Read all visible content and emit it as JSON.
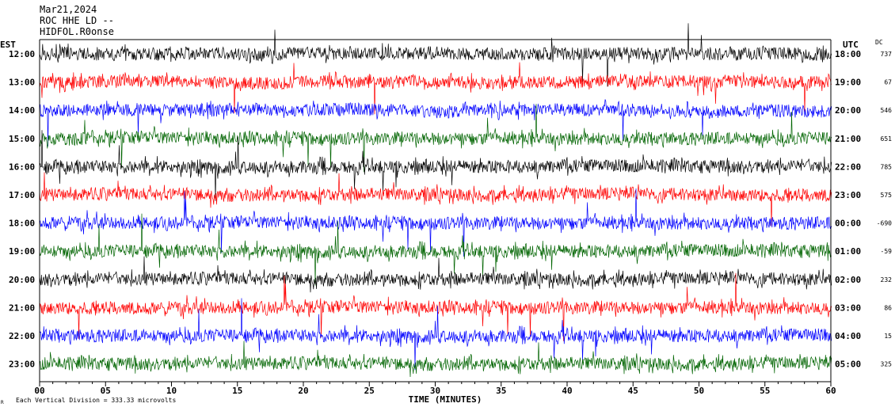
{
  "header": {
    "date": "Mar21,2024",
    "station": "ROC HHE LD --",
    "filter": "HIDFOL.R0onse"
  },
  "chart_data": {
    "type": "line",
    "title": "Mar21,2024",
    "left_axis_label": "EST",
    "right_axis_label": "UTC",
    "dc_label": "DC",
    "xlabel": "TIME (MINUTES)",
    "xlim": [
      0,
      60
    ],
    "x_ticks": [
      "00",
      "05",
      "10",
      "15",
      "20",
      "25",
      "30",
      "35",
      "40",
      "45",
      "50",
      "55",
      "60"
    ],
    "footer": "Each Vertical Division =  333.33 microvolts",
    "corner_mark": "R",
    "trace_colors": [
      "#000000",
      "#ff0000",
      "#0000ff",
      "#006400"
    ],
    "rows": [
      {
        "est": "12:00",
        "utc": "18:00",
        "dc": "737",
        "color": "#000000"
      },
      {
        "est": "13:00",
        "utc": "19:00",
        "dc": "67",
        "color": "#ff0000"
      },
      {
        "est": "14:00",
        "utc": "20:00",
        "dc": "546",
        "color": "#0000ff"
      },
      {
        "est": "15:00",
        "utc": "21:00",
        "dc": "651",
        "color": "#006400"
      },
      {
        "est": "16:00",
        "utc": "22:00",
        "dc": "785",
        "color": "#000000"
      },
      {
        "est": "17:00",
        "utc": "23:00",
        "dc": "575",
        "color": "#ff0000"
      },
      {
        "est": "18:00",
        "utc": "00:00",
        "dc": "-690",
        "color": "#0000ff"
      },
      {
        "est": "19:00",
        "utc": "01:00",
        "dc": "-59",
        "color": "#006400"
      },
      {
        "est": "20:00",
        "utc": "02:00",
        "dc": "232",
        "color": "#000000"
      },
      {
        "est": "21:00",
        "utc": "03:00",
        "dc": "86",
        "color": "#ff0000"
      },
      {
        "est": "22:00",
        "utc": "04:00",
        "dc": "15",
        "color": "#0000ff"
      },
      {
        "est": "23:00",
        "utc": "05:00",
        "dc": "325",
        "color": "#006400"
      }
    ]
  }
}
